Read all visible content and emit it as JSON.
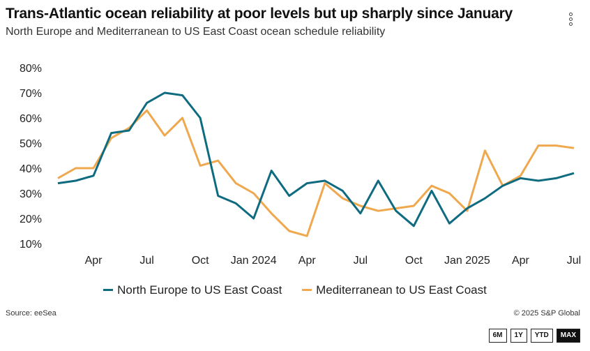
{
  "header": {
    "title": "Trans-Atlantic ocean reliability at poor levels but up sharply since January",
    "subtitle": "North Europe and Mediterranean to US East Coast ocean schedule reliability"
  },
  "footer": {
    "source": "Source: eeSea",
    "copyright": "© 2025 S&P Global"
  },
  "range_buttons": [
    "6M",
    "1Y",
    "YTD",
    "MAX"
  ],
  "active_range": "MAX",
  "menu_icon": "kebab-menu-icon",
  "chart_data": {
    "type": "line",
    "x": [
      "2023-02",
      "2023-03",
      "2023-04",
      "2023-05",
      "2023-06",
      "2023-07",
      "2023-08",
      "2023-09",
      "2023-10",
      "2023-11",
      "2023-12",
      "2024-01",
      "2024-02",
      "2024-03",
      "2024-04",
      "2024-05",
      "2024-06",
      "2024-07",
      "2024-08",
      "2024-09",
      "2024-10",
      "2024-11",
      "2024-12",
      "2025-01",
      "2025-02",
      "2025-03",
      "2025-04",
      "2025-05",
      "2025-06",
      "2025-07"
    ],
    "x_tick_labels": [
      "Apr",
      "Jul",
      "Oct",
      "Jan 2024",
      "Apr",
      "Jul",
      "Oct",
      "Jan 2025",
      "Apr",
      "Jul"
    ],
    "x_tick_index": [
      2,
      5,
      8,
      11,
      14,
      17,
      20,
      23,
      26,
      29
    ],
    "y_tick_labels": [
      "10%",
      "20%",
      "30%",
      "40%",
      "50%",
      "60%",
      "70%",
      "80%"
    ],
    "ylim": [
      10,
      80
    ],
    "grid": false,
    "legend_position": "bottom",
    "series": [
      {
        "name": "North Europe to US East Coast",
        "color": "#0f6b80",
        "values": [
          34,
          35,
          37,
          54,
          55,
          66,
          70,
          69,
          60,
          29,
          26,
          20,
          39,
          29,
          34,
          35,
          31,
          22,
          35,
          23,
          17,
          31,
          18,
          24,
          28,
          33,
          36,
          35,
          36,
          38
        ]
      },
      {
        "name": "Mediterranean to US East Coast",
        "color": "#f0a84e",
        "values": [
          36,
          40,
          40,
          52,
          56,
          63,
          53,
          60,
          41,
          43,
          34,
          30,
          22,
          15,
          13,
          34,
          28,
          25,
          23,
          24,
          25,
          33,
          30,
          23,
          47,
          33,
          37,
          49,
          49,
          48
        ]
      }
    ]
  }
}
